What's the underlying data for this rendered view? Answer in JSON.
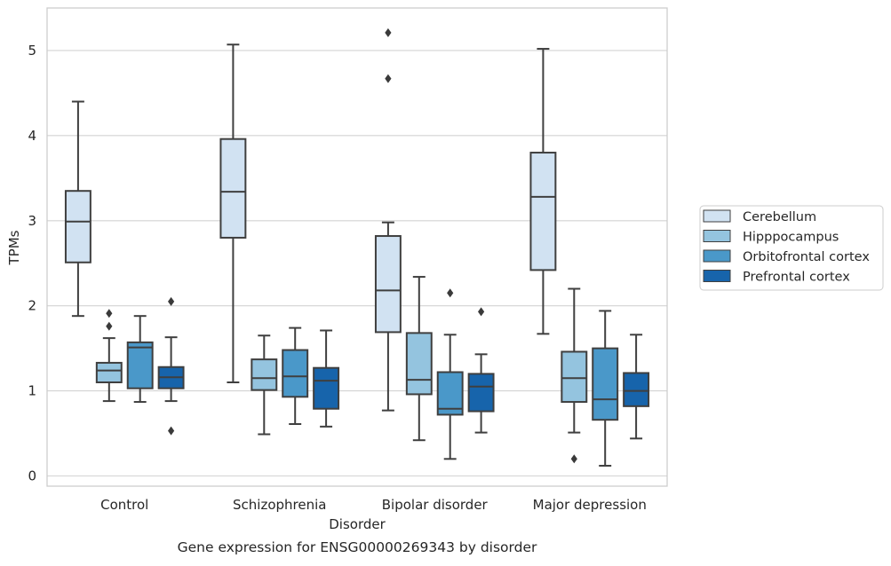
{
  "chart_data": {
    "type": "boxplot",
    "title": "Gene expression for ENSG00000269343 by disorder",
    "xlabel": "Disorder",
    "ylabel": "TPMs",
    "ylim": [
      -0.12,
      5.5
    ],
    "yticks": [
      0,
      1,
      2,
      3,
      4,
      5
    ],
    "grid": true,
    "legend_position": "right",
    "categories": [
      "Control",
      "Schizophrenia",
      "Bipolar disorder",
      "Major depression"
    ],
    "series": [
      {
        "name": "Cerebellum",
        "color": "#d1e2f2",
        "boxes": [
          {
            "whislo": 1.88,
            "q1": 2.51,
            "med": 2.99,
            "q3": 3.35,
            "whishi": 4.4,
            "fliers": []
          },
          {
            "whislo": 1.1,
            "q1": 2.8,
            "med": 3.34,
            "q3": 3.96,
            "whishi": 5.07,
            "fliers": []
          },
          {
            "whislo": 0.77,
            "q1": 1.69,
            "med": 2.18,
            "q3": 2.82,
            "whishi": 2.98,
            "fliers": [
              4.67,
              5.21
            ]
          },
          {
            "whislo": 1.67,
            "q1": 2.42,
            "med": 3.28,
            "q3": 3.8,
            "whishi": 5.02,
            "fliers": []
          }
        ]
      },
      {
        "name": "Hipppocampus",
        "color": "#94c4df",
        "boxes": [
          {
            "whislo": 0.88,
            "q1": 1.1,
            "med": 1.24,
            "q3": 1.33,
            "whishi": 1.62,
            "fliers": [
              1.76,
              1.91
            ]
          },
          {
            "whislo": 0.49,
            "q1": 1.01,
            "med": 1.15,
            "q3": 1.37,
            "whishi": 1.65,
            "fliers": []
          },
          {
            "whislo": 0.42,
            "q1": 0.96,
            "med": 1.13,
            "q3": 1.68,
            "whishi": 2.34,
            "fliers": []
          },
          {
            "whislo": 0.51,
            "q1": 0.87,
            "med": 1.15,
            "q3": 1.46,
            "whishi": 2.2,
            "fliers": [
              0.2
            ]
          }
        ]
      },
      {
        "name": "Orbitofrontal cortex",
        "color": "#4a98c9",
        "boxes": [
          {
            "whislo": 0.87,
            "q1": 1.03,
            "med": 1.51,
            "q3": 1.57,
            "whishi": 1.88,
            "fliers": []
          },
          {
            "whislo": 0.61,
            "q1": 0.93,
            "med": 1.17,
            "q3": 1.48,
            "whishi": 1.74,
            "fliers": []
          },
          {
            "whislo": 0.2,
            "q1": 0.72,
            "med": 0.79,
            "q3": 1.22,
            "whishi": 1.66,
            "fliers": [
              2.15
            ]
          },
          {
            "whislo": 0.12,
            "q1": 0.66,
            "med": 0.9,
            "q3": 1.5,
            "whishi": 1.94,
            "fliers": []
          }
        ]
      },
      {
        "name": "Prefrontal cortex",
        "color": "#1764ab",
        "boxes": [
          {
            "whislo": 0.88,
            "q1": 1.03,
            "med": 1.16,
            "q3": 1.28,
            "whishi": 1.63,
            "fliers": [
              0.53,
              2.05
            ]
          },
          {
            "whislo": 0.58,
            "q1": 0.79,
            "med": 1.12,
            "q3": 1.27,
            "whishi": 1.71,
            "fliers": []
          },
          {
            "whislo": 0.51,
            "q1": 0.76,
            "med": 1.05,
            "q3": 1.2,
            "whishi": 1.43,
            "fliers": [
              1.93
            ]
          },
          {
            "whislo": 0.44,
            "q1": 0.82,
            "med": 1.0,
            "q3": 1.21,
            "whishi": 1.66,
            "fliers": []
          }
        ]
      }
    ]
  }
}
